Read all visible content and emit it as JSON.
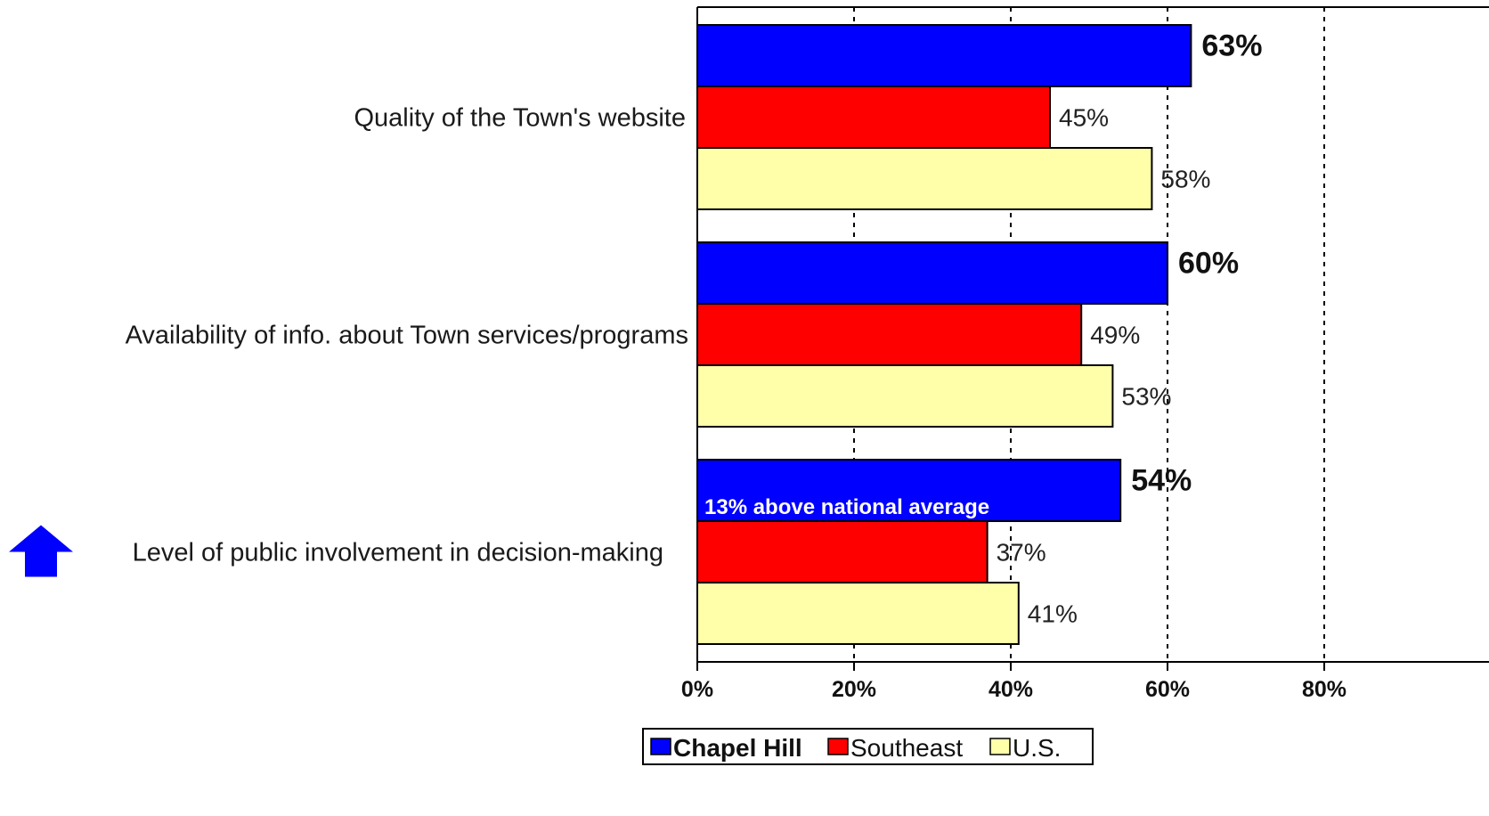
{
  "chart_data": {
    "type": "bar",
    "orientation": "horizontal",
    "categories": [
      "Quality of the Town's website",
      "Availability of info. about Town services/programs",
      "Level of public involvement in decision-making"
    ],
    "series": [
      {
        "name": "Chapel Hill",
        "values": [
          63,
          60,
          54
        ],
        "labels": [
          "63%",
          "60%",
          "54%"
        ],
        "color": "#0000ff"
      },
      {
        "name": "Southeast",
        "values": [
          45,
          49,
          37
        ],
        "labels": [
          "45%",
          "49%",
          "37%"
        ],
        "color": "#ff0000"
      },
      {
        "name": "U.S.",
        "values": [
          58,
          53,
          41
        ],
        "labels": [
          "58%",
          "53%",
          "41%"
        ],
        "color": "#ffffaa"
      }
    ],
    "xlim": [
      0,
      80
    ],
    "xticks": [
      0,
      20,
      40,
      60,
      80
    ],
    "xtick_labels": [
      "0%",
      "20%",
      "40%",
      "60%",
      "80%"
    ],
    "grid": "vertical dashed",
    "legend_position": "bottom",
    "annotation": {
      "text": "13% above national average",
      "category_index": 2
    },
    "marker": {
      "icon": "up-arrow-icon",
      "category_index": 2,
      "color": "#0000ff"
    }
  }
}
